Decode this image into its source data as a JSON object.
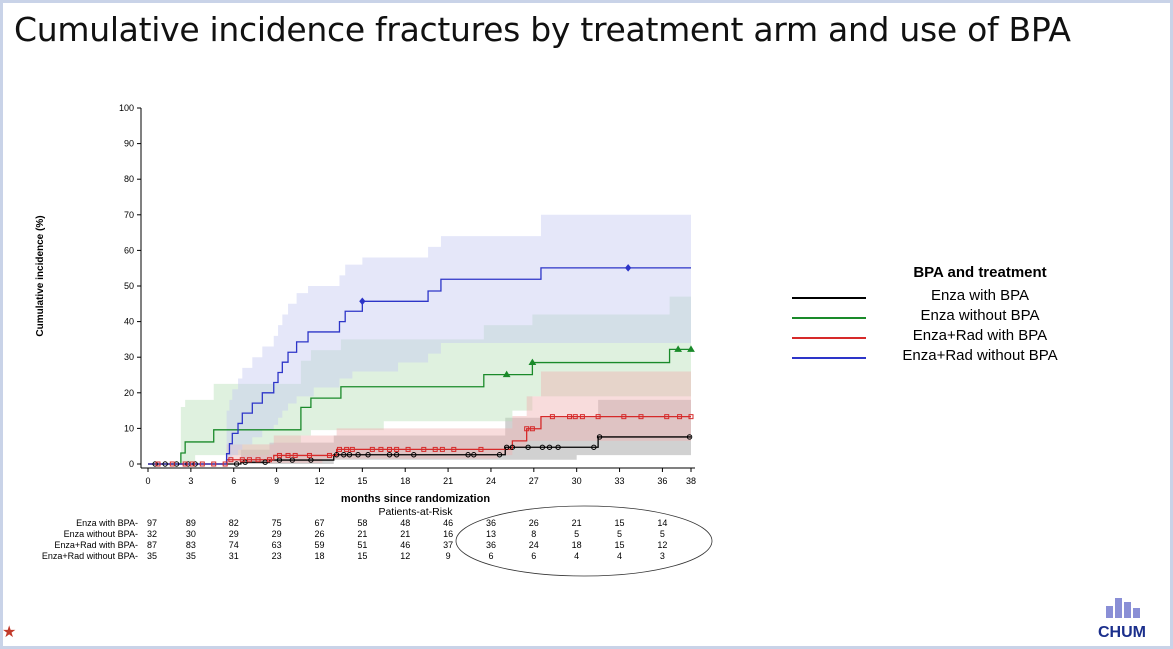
{
  "slide": {
    "title": "Cumulative incidence fractures by treatment arm and use of BPA"
  },
  "chart_data": {
    "type": "line",
    "title": "",
    "xlabel": "months since randomization",
    "ylabel": "Cumulative incidence (%)",
    "xlim": [
      0,
      38
    ],
    "ylim": [
      0,
      100
    ],
    "xticks": [
      0,
      3,
      6,
      9,
      12,
      15,
      18,
      21,
      24,
      27,
      30,
      33,
      36,
      38
    ],
    "yticks": [
      0,
      10,
      20,
      30,
      40,
      50,
      60,
      70,
      80,
      90,
      100
    ],
    "grid": false,
    "legend": {
      "title": "BPA and treatment",
      "placement": "right",
      "entries": [
        "Enza with BPA",
        "Enza without BPA",
        "Enza+Rad with BPA",
        "Enza+Rad without BPA"
      ]
    },
    "series": [
      {
        "name": "Enza with BPA",
        "color": "#000000",
        "band": "#9a9a9a",
        "x": [
          0,
          6.5,
          8.5,
          10.5,
          13,
          25,
          26.5,
          30,
          31.5,
          38
        ],
        "y": [
          0,
          0.5,
          1.1,
          1.1,
          2.6,
          4.7,
          4.7,
          4.7,
          7.6,
          7.6
        ],
        "lower": [
          0,
          0,
          0,
          0,
          0,
          1.2,
          1.2,
          1.2,
          2.5,
          2.5
        ],
        "upper": [
          0,
          4,
          6,
          6,
          8,
          13,
          13,
          13,
          18,
          18
        ],
        "censor_marker": "circle",
        "censor_x": [
          0.5,
          1.2,
          2,
          2.8,
          3.3,
          6.2,
          6.8,
          8.2,
          9.2,
          10.1,
          11.4,
          13.2,
          13.7,
          14.1,
          14.7,
          15.4,
          16.9,
          17.4,
          18.6,
          22.4,
          22.8,
          24.6,
          25.1,
          25.5,
          26.6,
          27.6,
          28.1,
          28.7,
          31.2,
          31.6,
          37.9
        ]
      },
      {
        "name": "Enza without BPA",
        "color": "#1a8a2a",
        "band": "#b9dfb9",
        "x": [
          0,
          2.3,
          2.6,
          3.3,
          4.6,
          8.5,
          10.7,
          11.4,
          13.5,
          16.5,
          23.5,
          25.5,
          26.9,
          36.5,
          38
        ],
        "y": [
          0,
          3.1,
          6.2,
          6.2,
          9.6,
          9.6,
          15.9,
          18.5,
          21.7,
          21.7,
          25.1,
          25.1,
          28.5,
          32.2,
          32.2
        ],
        "lower": [
          0,
          0,
          0.5,
          0.5,
          2.5,
          2.5,
          6,
          8,
          9.5,
          9.5,
          12,
          12,
          15,
          19,
          19
        ],
        "upper": [
          0,
          16,
          18,
          18,
          22.5,
          22.5,
          29,
          32,
          35,
          35,
          39,
          39,
          42,
          47,
          47
        ],
        "censor_marker": "triangle",
        "censor_x": [
          25.1,
          26.9,
          37.1,
          38
        ]
      },
      {
        "name": "Enza+Rad with BPA",
        "color": "#d62a2a",
        "band": "#efb2b2",
        "x": [
          0,
          5.5,
          8.8,
          12.2,
          13.2,
          24.5,
          25.5,
          26.5,
          27.5,
          38
        ],
        "y": [
          0,
          1.2,
          2.4,
          2.4,
          4.1,
          4.1,
          6.5,
          9.9,
          13.3,
          13.3
        ],
        "lower": [
          0,
          0,
          0.3,
          0.3,
          1.5,
          1.5,
          2.5,
          4.5,
          6.5,
          6.5
        ],
        "upper": [
          0,
          5.5,
          8,
          8,
          10,
          10,
          13.5,
          19,
          26,
          26
        ],
        "censor_marker": "square",
        "censor_x": [
          0.7,
          1.7,
          2.6,
          3.1,
          3.8,
          4.6,
          5.4,
          5.8,
          6.6,
          7.1,
          7.7,
          8.5,
          9.2,
          9.8,
          10.3,
          11.3,
          12.7,
          13.4,
          13.9,
          14.3,
          15.7,
          16.3,
          16.9,
          17.4,
          18.2,
          19.3,
          20.1,
          20.6,
          21.4,
          23.3,
          26.5,
          26.9,
          28.3,
          29.5,
          29.9,
          30.4,
          31.5,
          33.3,
          34.5,
          36.3,
          37.2,
          38
        ]
      },
      {
        "name": "Enza+Rad without BPA",
        "color": "#2d35c8",
        "band": "#c6c9f1",
        "x": [
          0,
          5.5,
          5.7,
          5.9,
          6.3,
          6.6,
          7.3,
          8.0,
          8.8,
          9.1,
          9.4,
          9.8,
          10.4,
          11.2,
          11.6,
          13.4,
          13.8,
          14.3,
          15.0,
          17.5,
          19.6,
          20.5,
          27.5,
          38
        ],
        "y": [
          0,
          2.9,
          5.7,
          8.6,
          11.4,
          14.3,
          17.1,
          20.0,
          22.9,
          25.7,
          28.6,
          31.4,
          34.3,
          37.1,
          37.1,
          40.0,
          42.9,
          42.9,
          45.7,
          45.7,
          48.6,
          51.9,
          55.1,
          55.1
        ],
        "lower": [
          0,
          0,
          0.5,
          1.5,
          2.5,
          4,
          5.5,
          7.5,
          9.5,
          11,
          13,
          15,
          17,
          19,
          19,
          21.5,
          24,
          24,
          26,
          26,
          28.5,
          31,
          34,
          34
        ],
        "upper": [
          0,
          15,
          18,
          21,
          24,
          27,
          30,
          33,
          36,
          39,
          42,
          45,
          48,
          50,
          50,
          53,
          56,
          56,
          58,
          58,
          61,
          64,
          70,
          70
        ],
        "censor_marker": "diamond",
        "censor_x": [
          15.0,
          33.6
        ]
      }
    ],
    "risk_table": {
      "title": "Patients-at-Risk",
      "times": [
        0,
        3,
        6,
        9,
        12,
        15,
        18,
        21,
        24,
        27,
        30,
        33,
        36
      ],
      "rows": [
        {
          "label": "Enza with BPA-",
          "values": [
            "97",
            "89",
            "82",
            "75",
            "67",
            "58",
            "48",
            "46",
            "36",
            "26",
            "21",
            "15",
            "14"
          ]
        },
        {
          "label": "Enza without BPA-",
          "values": [
            "32",
            "30",
            "29",
            "29",
            "26",
            "21",
            "21",
            "16",
            "13",
            "8",
            "5",
            "5",
            "5"
          ]
        },
        {
          "label": "Enza+Rad with BPA-",
          "values": [
            "87",
            "83",
            "74",
            "63",
            "59",
            "51",
            "46",
            "37",
            "36",
            "24",
            "18",
            "15",
            "12"
          ]
        },
        {
          "label": "Enza+Rad without BPA-",
          "values": [
            "35",
            "35",
            "31",
            "23",
            "18",
            "15",
            "12",
            "9",
            "6",
            "6",
            "4",
            "4",
            "3"
          ]
        }
      ]
    }
  },
  "logo": {
    "text": "CHUM",
    "color": "#1b2f8c"
  }
}
